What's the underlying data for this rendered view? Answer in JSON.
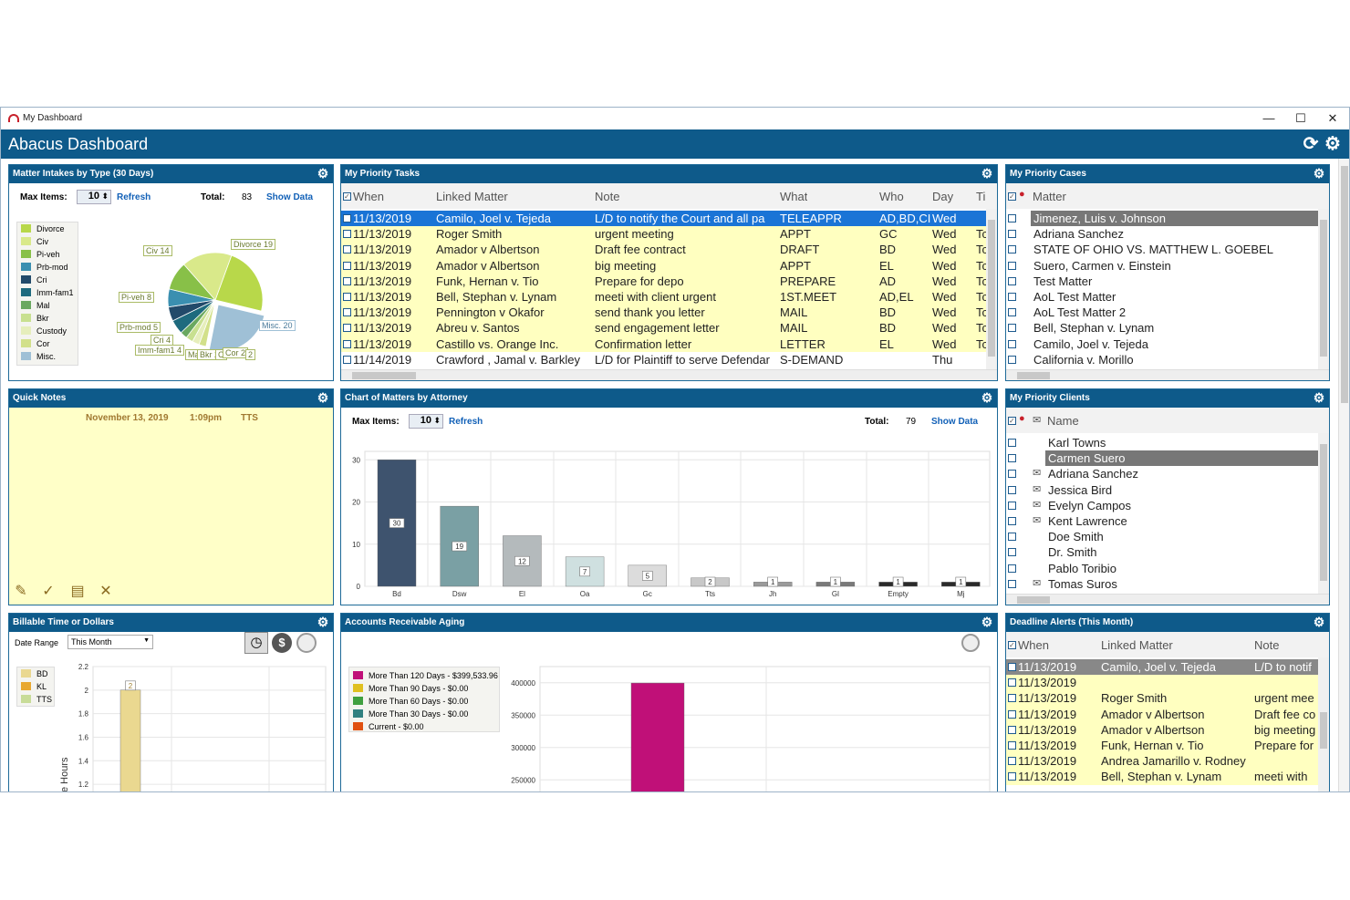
{
  "window": {
    "title": "My Dashboard",
    "minimize": "—",
    "maximize": "☐",
    "close": "✕"
  },
  "header": {
    "title": "Abacus Dashboard"
  },
  "intakes": {
    "title": "Matter Intakes by Type (30 Days)",
    "max_items_label": "Max Items:",
    "max_items": "10",
    "refresh": "Refresh",
    "total_label": "Total:",
    "total": "83",
    "show_data": "Show Data",
    "legend": [
      {
        "name": "Divorce",
        "color": "#b8d84a"
      },
      {
        "name": "Civ",
        "color": "#d9e98a"
      },
      {
        "name": "Pi-veh",
        "color": "#88c048"
      },
      {
        "name": "Prb-mod",
        "color": "#3a8fb0"
      },
      {
        "name": "Cri",
        "color": "#224a6a"
      },
      {
        "name": "Imm-fam1",
        "color": "#1e6a7e"
      },
      {
        "name": "Mal",
        "color": "#6aa860"
      },
      {
        "name": "Bkr",
        "color": "#c8e090"
      },
      {
        "name": "Custody",
        "color": "#e6eebc"
      },
      {
        "name": "Cor",
        "color": "#d2e08a"
      },
      {
        "name": "Misc.",
        "color": "#9fc0d6"
      }
    ],
    "labels": [
      "Civ 14",
      "Divorce 19",
      "Pi-veh 8",
      "Prb-mod 5",
      "Cri 4",
      "Imm-fam1 4",
      "Ma",
      "Bkr 2",
      "C",
      "Cor 2",
      "2",
      "Misc. 20"
    ]
  },
  "tasks": {
    "title": "My Priority Tasks",
    "columns": [
      "When",
      "Linked Matter",
      "Note",
      "What",
      "Who",
      "Day",
      "Ti"
    ],
    "rows": [
      [
        "11/13/2019",
        "Camilo, Joel v. Tejeda",
        "L/D to notify the Court and all pa",
        "TELEAPPR",
        "AD,BD,CI",
        "Wed",
        ""
      ],
      [
        "11/13/2019",
        "Roger Smith",
        "urgent meeting",
        "APPT",
        "GC",
        "Wed",
        "Tc"
      ],
      [
        "11/13/2019",
        "Amador v Albertson",
        "Draft fee contract",
        "DRAFT",
        "BD",
        "Wed",
        "Tc"
      ],
      [
        "11/13/2019",
        "Amador v Albertson",
        "big meeting",
        "APPT",
        "EL",
        "Wed",
        "Tc"
      ],
      [
        "11/13/2019",
        "Funk, Hernan v. Tio",
        "Prepare for depo",
        "PREPARE",
        "AD",
        "Wed",
        "Tc"
      ],
      [
        "11/13/2019",
        "Bell, Stephan v. Lynam",
        "meeti with client urgent",
        "1ST.MEET",
        "AD,EL",
        "Wed",
        "Tc"
      ],
      [
        "11/13/2019",
        "Pennington v Okafor",
        "send thank you letter",
        "MAIL",
        "BD",
        "Wed",
        "Tc"
      ],
      [
        "11/13/2019",
        "Abreu v. Santos",
        "send engagement letter",
        "MAIL",
        "BD",
        "Wed",
        "Tc"
      ],
      [
        "11/13/2019",
        "Castillo vs. Orange Inc.",
        "Confirmation letter",
        "LETTER",
        "EL",
        "Wed",
        "Tc"
      ],
      [
        "11/14/2019",
        "Crawford , Jamal v. Barkley",
        "L/D for Plaintiff to serve Defendar",
        "S-DEMAND",
        "",
        "Thu",
        ""
      ]
    ]
  },
  "cases": {
    "title": "My Priority Cases",
    "column": "Matter",
    "rows": [
      "Jimenez, Luis v. Johnson",
      "Adriana Sanchez",
      "STATE OF OHIO VS. MATTHEW L. GOEBEL",
      "Suero, Carmen v. Einstein",
      "Test Matter",
      "AoL Test Matter",
      "AoL Test Matter 2",
      "Bell, Stephan v. Lynam",
      "Camilo, Joel v. Tejeda",
      "California v. Morillo"
    ]
  },
  "notes": {
    "title": "Quick Notes",
    "date": "November 13, 2019",
    "time": "1:09pm",
    "user": "TTS",
    "tools": [
      {
        "icon": "add-note-icon",
        "glyph": "✎"
      },
      {
        "icon": "spellcheck-icon",
        "glyph": "✓"
      },
      {
        "icon": "clipboard-icon",
        "glyph": "▤"
      },
      {
        "icon": "delete-icon",
        "glyph": "✕"
      }
    ]
  },
  "attorney_chart": {
    "title": "Chart of Matters by Attorney",
    "max_items_label": "Max Items:",
    "max_items": "10",
    "refresh": "Refresh",
    "total_label": "Total:",
    "total": "79",
    "show_data": "Show Data"
  },
  "clients": {
    "title": "My Priority Clients",
    "column": "Name",
    "rows": [
      {
        "name": "Karl Towns",
        "mail": false
      },
      {
        "name": "Carmen Suero",
        "mail": false
      },
      {
        "name": "Adriana Sanchez",
        "mail": true
      },
      {
        "name": "Jessica Bird",
        "mail": true
      },
      {
        "name": "Evelyn Campos",
        "mail": true
      },
      {
        "name": "Kent Lawrence",
        "mail": true
      },
      {
        "name": "Doe Smith",
        "mail": false
      },
      {
        "name": "Dr. Smith",
        "mail": false
      },
      {
        "name": "Pablo Toribio",
        "mail": false
      },
      {
        "name": "Tomas Suros",
        "mail": true
      }
    ]
  },
  "billable": {
    "title": "Billable Time or Dollars",
    "date_range_label": "Date Range",
    "date_range": "This Month",
    "legend": [
      {
        "name": "BD",
        "color": "#ead890"
      },
      {
        "name": "KL",
        "color": "#e8a830"
      },
      {
        "name": "TTS",
        "color": "#c8dc98"
      }
    ],
    "ylabel": "e Hours"
  },
  "ar": {
    "title": "Accounts Receivable Aging",
    "legend": [
      {
        "name": "More Than 120 Days - $399,533.96",
        "color": "#c01078"
      },
      {
        "name": "More Than 90 Days - $0.00",
        "color": "#e0c020"
      },
      {
        "name": "More Than 60 Days - $0.00",
        "color": "#40a040"
      },
      {
        "name": "More Than 30 Days - $0.00",
        "color": "#308080"
      },
      {
        "name": "Current - $0.00",
        "color": "#e05010"
      }
    ]
  },
  "deadlines": {
    "title": "Deadline Alerts (This Month)",
    "columns": [
      "When",
      "Linked Matter",
      "Note"
    ],
    "rows": [
      [
        "11/13/2019",
        "Camilo, Joel v. Tejeda",
        "L/D to notif"
      ],
      [
        "11/13/2019",
        "",
        ""
      ],
      [
        "11/13/2019",
        "Roger Smith",
        "urgent mee"
      ],
      [
        "11/13/2019",
        "Amador v Albertson",
        "Draft fee co"
      ],
      [
        "11/13/2019",
        "Amador v Albertson",
        "big meeting"
      ],
      [
        "11/13/2019",
        "Funk, Hernan v. Tio",
        "Prepare for"
      ],
      [
        "11/13/2019",
        "Andrea Jamarillo v. Rodney",
        ""
      ],
      [
        "11/13/2019",
        "Bell, Stephan v. Lynam",
        "meeti with"
      ]
    ]
  },
  "chart_data": [
    {
      "type": "pie",
      "title": "",
      "categories": [
        "Divorce",
        "Misc.",
        "Cor",
        "Custody",
        "Bkr",
        "Mal",
        "Imm-fam1",
        "Cri",
        "Prb-mod",
        "Pi-veh",
        "Civ"
      ],
      "values": [
        19,
        20,
        2,
        2,
        2,
        2,
        4,
        4,
        5,
        8,
        14
      ],
      "colors": [
        "#b8d84a",
        "#9fc0d6",
        "#d2e08a",
        "#e6eebc",
        "#c8e090",
        "#6aa860",
        "#1e6a7e",
        "#224a6a",
        "#3a8fb0",
        "#88c048",
        "#d9e98a"
      ],
      "exploded": [
        "Misc."
      ]
    },
    {
      "type": "bar",
      "title": "",
      "categories": [
        "Bd",
        "Dsw",
        "El",
        "Oa",
        "Gc",
        "Tts",
        "Jh",
        "Gl",
        "Empty",
        "Mj"
      ],
      "values": [
        30,
        19,
        12,
        7,
        5,
        2,
        1,
        1,
        1,
        1
      ],
      "colors": [
        "#3e536e",
        "#7aa0a4",
        "#b4babc",
        "#cfe0e0",
        "#dcdcdc",
        "#c8c8c8",
        "#9a9a9a",
        "#7a7a7a",
        "#2a2a2a",
        "#2a2a2a"
      ],
      "ylim": [
        0,
        32
      ],
      "yticks": [
        0,
        10,
        20,
        30
      ]
    },
    {
      "type": "bar",
      "title": "",
      "categories": [
        "BD"
      ],
      "values": [
        2
      ],
      "ylim": [
        1.1,
        2.2
      ],
      "yticks": [
        1.2,
        1.4,
        1.6,
        1.8,
        2,
        2.2
      ],
      "ylabel": "e Hours"
    },
    {
      "type": "bar",
      "title": "",
      "categories": [
        "More Than 120 Days"
      ],
      "values": [
        399533.96
      ],
      "ylim": [
        225000,
        425000
      ],
      "yticks": [
        250000,
        300000,
        350000,
        400000
      ]
    }
  ]
}
